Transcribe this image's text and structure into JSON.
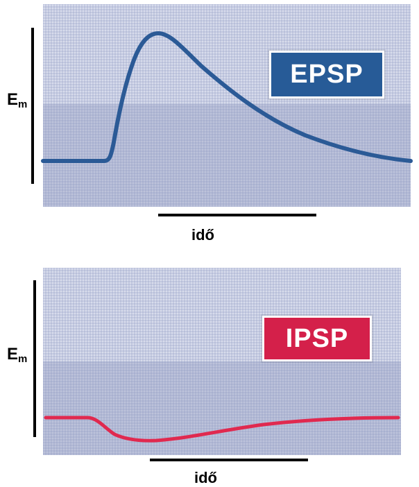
{
  "panels": [
    {
      "badge_text": "EPSP",
      "badge_color": "#275b97",
      "curve_color": "#2b5a96",
      "y_label": "E",
      "y_label_sub": "m",
      "x_label": "idő",
      "shape": "depolarizing-peak"
    },
    {
      "badge_text": "IPSP",
      "badge_color": "#d4204a",
      "curve_color": "#e0294f",
      "y_label": "E",
      "y_label_sub": "m",
      "x_label": "idő",
      "shape": "hyperpolarizing-dip"
    }
  ]
}
